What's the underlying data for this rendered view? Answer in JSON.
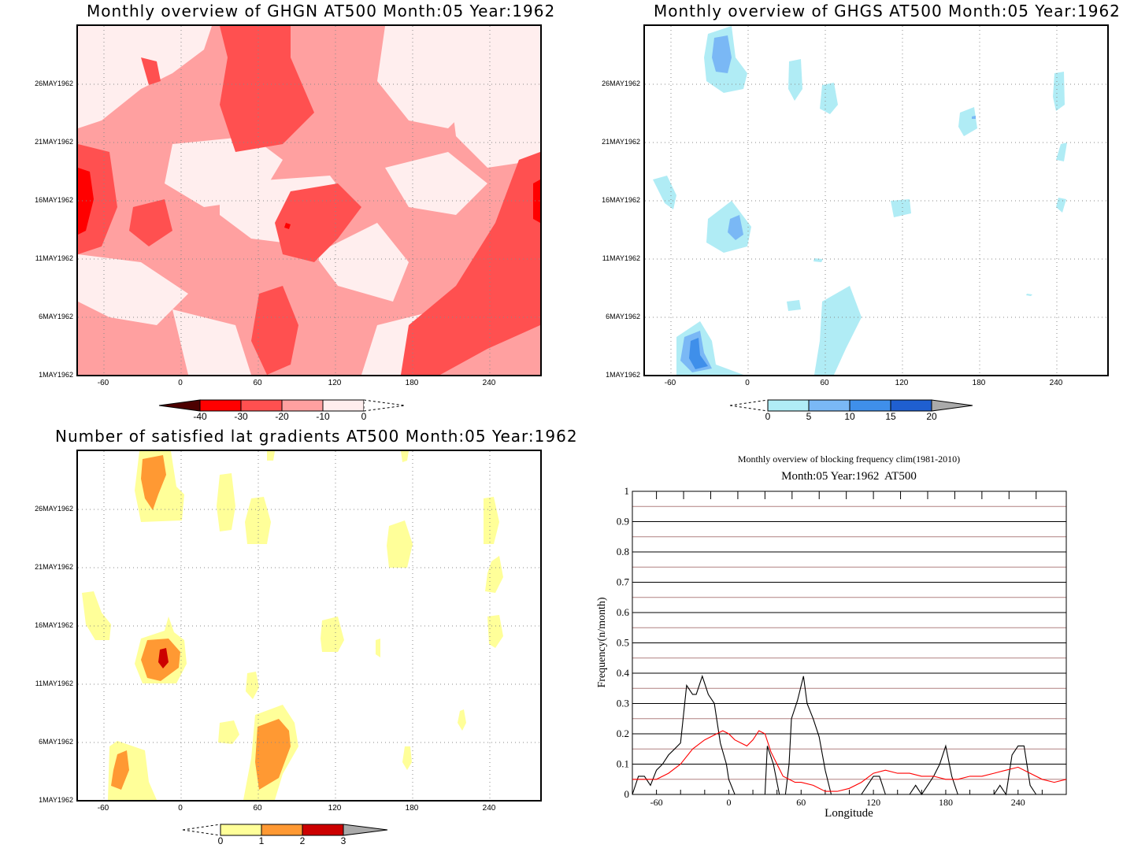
{
  "panels": {
    "ghgn": {
      "title": "Monthly overview of GHGN AT500 Month:05 Year:1962",
      "yticks": [
        "26MAY1962",
        "21MAY1962",
        "16MAY1962",
        "11MAY1962",
        "6MAY1962",
        "1MAY1962"
      ],
      "xticks": [
        "-60",
        "0",
        "60",
        "120",
        "180",
        "240"
      ],
      "colorbar": [
        "-40",
        "-30",
        "-20",
        "-10",
        "0"
      ]
    },
    "ghgs": {
      "title": "Monthly overview of GHGS AT500 Month:05 Year:1962",
      "yticks": [
        "26MAY1962",
        "21MAY1962",
        "16MAY1962",
        "11MAY1962",
        "6MAY1962",
        "1MAY1962"
      ],
      "xticks": [
        "-60",
        "0",
        "60",
        "120",
        "180",
        "240"
      ],
      "colorbar": [
        "0",
        "5",
        "10",
        "15",
        "20"
      ]
    },
    "lat": {
      "title": "Number of satisfied lat gradients AT500 Month:05 Year:1962",
      "yticks": [
        "26MAY1962",
        "21MAY1962",
        "16MAY1962",
        "11MAY1962",
        "6MAY1962",
        "1MAY1962"
      ],
      "xticks": [
        "-60",
        "0",
        "60",
        "120",
        "180",
        "240"
      ],
      "colorbar": [
        "0",
        "1",
        "2",
        "3"
      ]
    },
    "freq": {
      "title": "Monthly overview of blocking frequency clim(1981-2010)",
      "subtitle": "Month:05 Year:1962  AT500",
      "ylabel": "Frequency(n/month)",
      "xlabel": "Longitude",
      "yticks": [
        "1",
        "0.9",
        "0.8",
        "0.7",
        "0.6",
        "0.5",
        "0.4",
        "0.3",
        "0.2",
        "0.1",
        "0"
      ],
      "xticks": [
        "-60",
        "0",
        "60",
        "120",
        "180",
        "240"
      ]
    }
  },
  "colors": {
    "red_scale": [
      "#4d0000",
      "#ff0000",
      "#ff5050",
      "#ffa0a0",
      "#ffeeee"
    ],
    "blue_scale": [
      "#b0ecf5",
      "#7ab8f5",
      "#3f8fea",
      "#1f5fd0"
    ],
    "yellow_scale": [
      "#ffff99",
      "#ff9933",
      "#cc0000"
    ],
    "year_line": "#000000",
    "clim_line": "#ff0000"
  },
  "chart_data": [
    {
      "type": "line",
      "title": "Monthly overview of blocking frequency clim(1981-2010)",
      "subtitle": "Month:05 Year:1962  AT500",
      "xlabel": "Longitude",
      "ylabel": "Frequency(n/month)",
      "xlim": [
        -80,
        280
      ],
      "ylim": [
        0,
        1
      ],
      "grid": true,
      "series": [
        {
          "color": "#000000",
          "x": [
            -80,
            -75,
            -70,
            -65,
            -60,
            -55,
            -50,
            -45,
            -40,
            -35,
            -30,
            -27,
            -22,
            -17,
            -12,
            -7,
            -2,
            0,
            5,
            10,
            15,
            20,
            25,
            30,
            32,
            37,
            42,
            47,
            50,
            52,
            57,
            62,
            65,
            70,
            75,
            80,
            85,
            90,
            95,
            100,
            105,
            110,
            115,
            120,
            125,
            130,
            135,
            140,
            145,
            150,
            155,
            160,
            165,
            170,
            175,
            180,
            185,
            190,
            195,
            200,
            205,
            210,
            215,
            220,
            225,
            230,
            235,
            240,
            245,
            250,
            255,
            260,
            265,
            270,
            275,
            280
          ],
          "values": [
            0,
            0.06,
            0.06,
            0.03,
            0.08,
            0.1,
            0.13,
            0.15,
            0.17,
            0.36,
            0.33,
            0.33,
            0.39,
            0.33,
            0.3,
            0.17,
            0.1,
            0.05,
            0,
            0,
            0,
            0,
            0,
            0,
            0.16,
            0.1,
            0,
            0,
            0.1,
            0.25,
            0.31,
            0.39,
            0.3,
            0.25,
            0.19,
            0.08,
            0,
            0,
            0,
            0,
            0,
            0,
            0.03,
            0.06,
            0.06,
            0,
            0,
            0,
            0,
            0,
            0.03,
            0,
            0.03,
            0.06,
            0.1,
            0.16,
            0.06,
            0,
            0,
            0,
            0,
            0,
            0,
            0,
            0.03,
            0,
            0.13,
            0.16,
            0.16,
            0.03,
            0,
            0,
            0,
            0,
            0,
            0
          ]
        },
        {
          "color": "#ff0000",
          "x": [
            -80,
            -70,
            -60,
            -50,
            -40,
            -30,
            -20,
            -10,
            -5,
            0,
            5,
            10,
            15,
            20,
            25,
            30,
            35,
            40,
            45,
            50,
            55,
            60,
            70,
            80,
            90,
            100,
            110,
            120,
            130,
            140,
            150,
            160,
            170,
            180,
            190,
            200,
            210,
            220,
            230,
            240,
            250,
            260,
            270,
            280
          ],
          "values": [
            0.05,
            0.05,
            0.05,
            0.07,
            0.1,
            0.15,
            0.18,
            0.2,
            0.21,
            0.2,
            0.18,
            0.17,
            0.16,
            0.18,
            0.21,
            0.2,
            0.14,
            0.1,
            0.06,
            0.05,
            0.04,
            0.04,
            0.03,
            0.01,
            0.01,
            0.02,
            0.04,
            0.07,
            0.08,
            0.07,
            0.07,
            0.06,
            0.06,
            0.05,
            0.05,
            0.06,
            0.06,
            0.07,
            0.08,
            0.09,
            0.07,
            0.05,
            0.04,
            0.05
          ]
        }
      ]
    }
  ]
}
